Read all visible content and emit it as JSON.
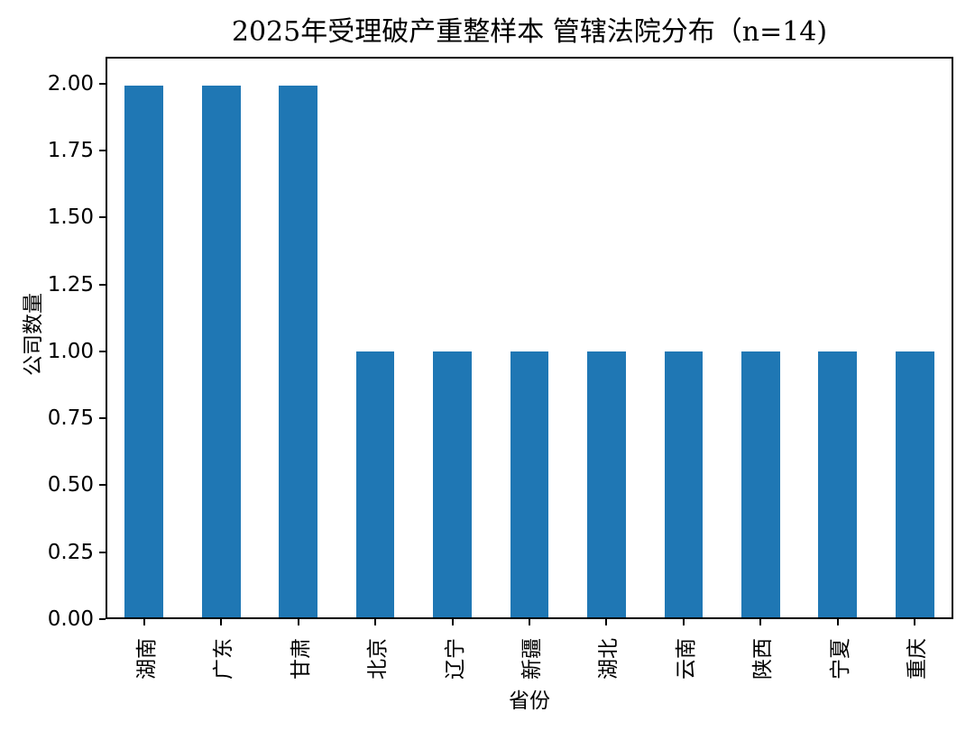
{
  "figure": {
    "background": "#ffffff",
    "text_color": "#000000"
  },
  "chart_data": {
    "type": "bar",
    "title": "2025年受理破产重整样本 管辖法院分布（n=14)",
    "xlabel": "省份",
    "ylabel": "公司数量",
    "categories": [
      "湖南",
      "广东",
      "甘肃",
      "北京",
      "辽宁",
      "新疆",
      "湖北",
      "云南",
      "陕西",
      "宁夏",
      "重庆"
    ],
    "values": [
      2,
      2,
      2,
      1,
      1,
      1,
      1,
      1,
      1,
      1,
      1
    ],
    "yticks": [
      "0.00",
      "0.25",
      "0.50",
      "0.75",
      "1.00",
      "1.25",
      "1.50",
      "1.75",
      "2.00"
    ],
    "ylim": [
      0,
      2.1
    ],
    "bar_color": "#1f77b4",
    "bar_width_fraction": 0.5,
    "xtick_rotation": 90,
    "grid": false,
    "legend_position": "none"
  }
}
